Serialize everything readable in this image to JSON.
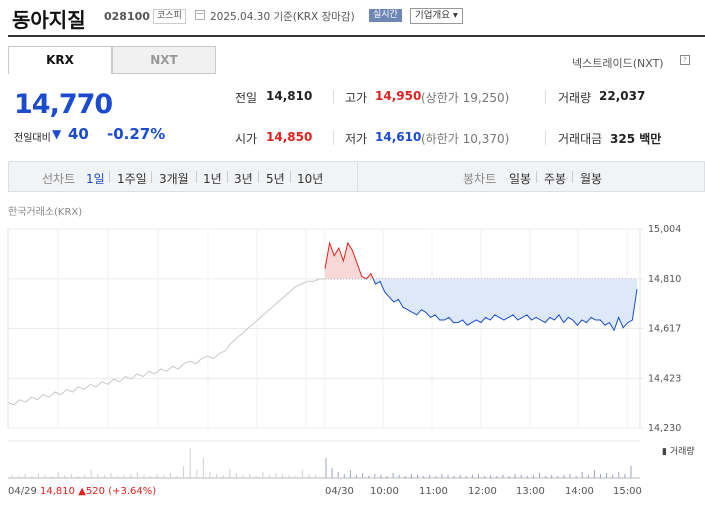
{
  "header": {
    "name": "동아지질",
    "code": "028100",
    "market_badge": "코스피",
    "date_text": "2025.04.30  기준(KRX 장마감)",
    "realtime_badge": "실시간",
    "overview_button": "기업개요 ▾"
  },
  "tabs": [
    {
      "label": "KRX",
      "active": true
    },
    {
      "label": "NXT",
      "active": false
    }
  ],
  "nxt_link": "넥스트레이드(NXT)",
  "quote": {
    "price": "14,770",
    "prev_label": "전일대비",
    "direction_icon": "▼",
    "change": "40",
    "change_rate": "-0.27%"
  },
  "stats": {
    "prev_close_label": "전일",
    "prev_close": "14,810",
    "high_label": "고가",
    "high": "14,950",
    "upper_limit": "(상한가 19,250)",
    "volume_label": "거래량",
    "volume": "22,037",
    "open_label": "시가",
    "open": "14,850",
    "low_label": "저가",
    "low": "14,610",
    "lower_limit": "(하한가 10,370)",
    "amount_label": "거래대금",
    "amount": "325 백만"
  },
  "period_bar": {
    "label": "선차트",
    "periods": [
      "1일",
      "1주일",
      "3개월",
      "1년",
      "3년",
      "5년",
      "10년"
    ],
    "active_period": "1일",
    "candle_label": "봉차트",
    "candles": [
      "일봉",
      "주봉",
      "월봉"
    ]
  },
  "exchange_label": "한국거래소(KRX)",
  "chart_data": {
    "type": "line",
    "y_ticks": [
      "15,004",
      "14,810",
      "14,617",
      "14,423",
      "14,230"
    ],
    "ylim": [
      14230,
      15004
    ],
    "baseline": 14810,
    "x_ticks": [
      "04/29",
      "04/30",
      "10:00",
      "11:00",
      "12:00",
      "13:00",
      "14:00",
      "15:00"
    ],
    "prev_day_series": [
      14330,
      14320,
      14340,
      14330,
      14350,
      14340,
      14360,
      14350,
      14370,
      14360,
      14380,
      14370,
      14390,
      14380,
      14400,
      14390,
      14410,
      14400,
      14420,
      14410,
      14430,
      14420,
      14440,
      14430,
      14450,
      14440,
      14460,
      14450,
      14470,
      14460,
      14480,
      14490,
      14480,
      14500,
      14510,
      14500,
      14520,
      14530,
      14560,
      14580,
      14600,
      14620,
      14640,
      14660,
      14680,
      14700,
      14720,
      14740,
      14760,
      14780,
      14790,
      14800,
      14800,
      14810,
      14810
    ],
    "today_series": [
      14850,
      14950,
      14900,
      14930,
      14880,
      14950,
      14920,
      14870,
      14820,
      14810,
      14830,
      14790,
      14800,
      14760,
      14740,
      14720,
      14730,
      14700,
      14690,
      14680,
      14670,
      14690,
      14680,
      14660,
      14670,
      14650,
      14650,
      14660,
      14640,
      14640,
      14650,
      14630,
      14640,
      14650,
      14640,
      14660,
      14650,
      14670,
      14660,
      14650,
      14660,
      14670,
      14650,
      14660,
      14670,
      14650,
      14660,
      14650,
      14640,
      14660,
      14650,
      14670,
      14640,
      14660,
      14650,
      14630,
      14650,
      14640,
      14660,
      14650,
      14650,
      14630,
      14640,
      14610,
      14660,
      14620,
      14640,
      14650,
      14770
    ],
    "volume_legend": "거래량"
  },
  "base_info": {
    "date": "04/29",
    "price": "14,810",
    "arrow": "▲",
    "change": "520",
    "rate": "(+3.64%)"
  },
  "colors": {
    "up": "#e0211d",
    "down": "#1a4bd1",
    "down_fill": "#dde8f8",
    "up_fill": "#f8d7d7"
  }
}
